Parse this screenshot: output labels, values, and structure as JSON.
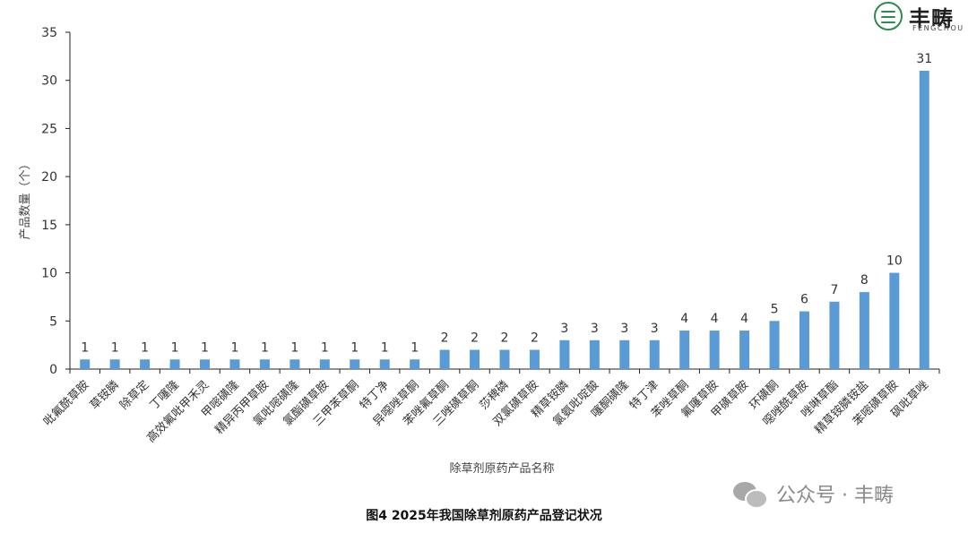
{
  "logo": {
    "icon": "fengchou-leaf-logo-icon",
    "name_cn": "丰畴",
    "name_en": "FENGCHOU"
  },
  "watermark": {
    "icon": "wechat-icon",
    "text": "公众号 · 丰畴"
  },
  "caption": "图4 2025年我国除草剂原药产品登记状况",
  "chart_data": {
    "type": "bar",
    "title": "",
    "xlabel": "除草剂原药产品名称",
    "ylabel": "产品数量（个）",
    "ylim": [
      0,
      35
    ],
    "yticks": [
      0,
      5,
      10,
      15,
      20,
      25,
      30,
      35
    ],
    "grid": false,
    "bar_color": "#5b9bd5",
    "categories": [
      "吡氟酰草胺",
      "草铵膦",
      "除草定",
      "丁噻隆",
      "高效氟吡甲禾灵",
      "甲嘧磺隆",
      "精异丙甲草胺",
      "氯吡嘧磺隆",
      "氯酯磺草胺",
      "三甲苯草酮",
      "特丁净",
      "异噁唑草酮",
      "苯唑氟草酮",
      "三唑磺草酮",
      "莎稗磷",
      "双氯磺草胺",
      "精草铵膦",
      "氯氨吡啶酸",
      "噻酮磺隆",
      "特丁津",
      "苯唑草酮",
      "氟噻草胺",
      "甲磺草胺",
      "环磺酮",
      "噁唑酰草胺",
      "唑啉草酯",
      "精草铵膦铵盐",
      "苯嘧磺草胺",
      "砜吡草唑"
    ],
    "values": [
      1,
      1,
      1,
      1,
      1,
      1,
      1,
      1,
      1,
      1,
      1,
      1,
      2,
      2,
      2,
      2,
      3,
      3,
      3,
      3,
      4,
      4,
      4,
      5,
      6,
      7,
      8,
      10,
      31
    ],
    "data_labels": [
      "1",
      "1",
      "1",
      "1",
      "1",
      "1",
      "1",
      "1",
      "1",
      "1",
      "1",
      "1",
      "2",
      "2",
      "2",
      "2",
      "3",
      "3",
      "3",
      "3",
      "4",
      "4",
      "4",
      "5",
      "6",
      "7",
      "8",
      "10",
      "31"
    ]
  }
}
